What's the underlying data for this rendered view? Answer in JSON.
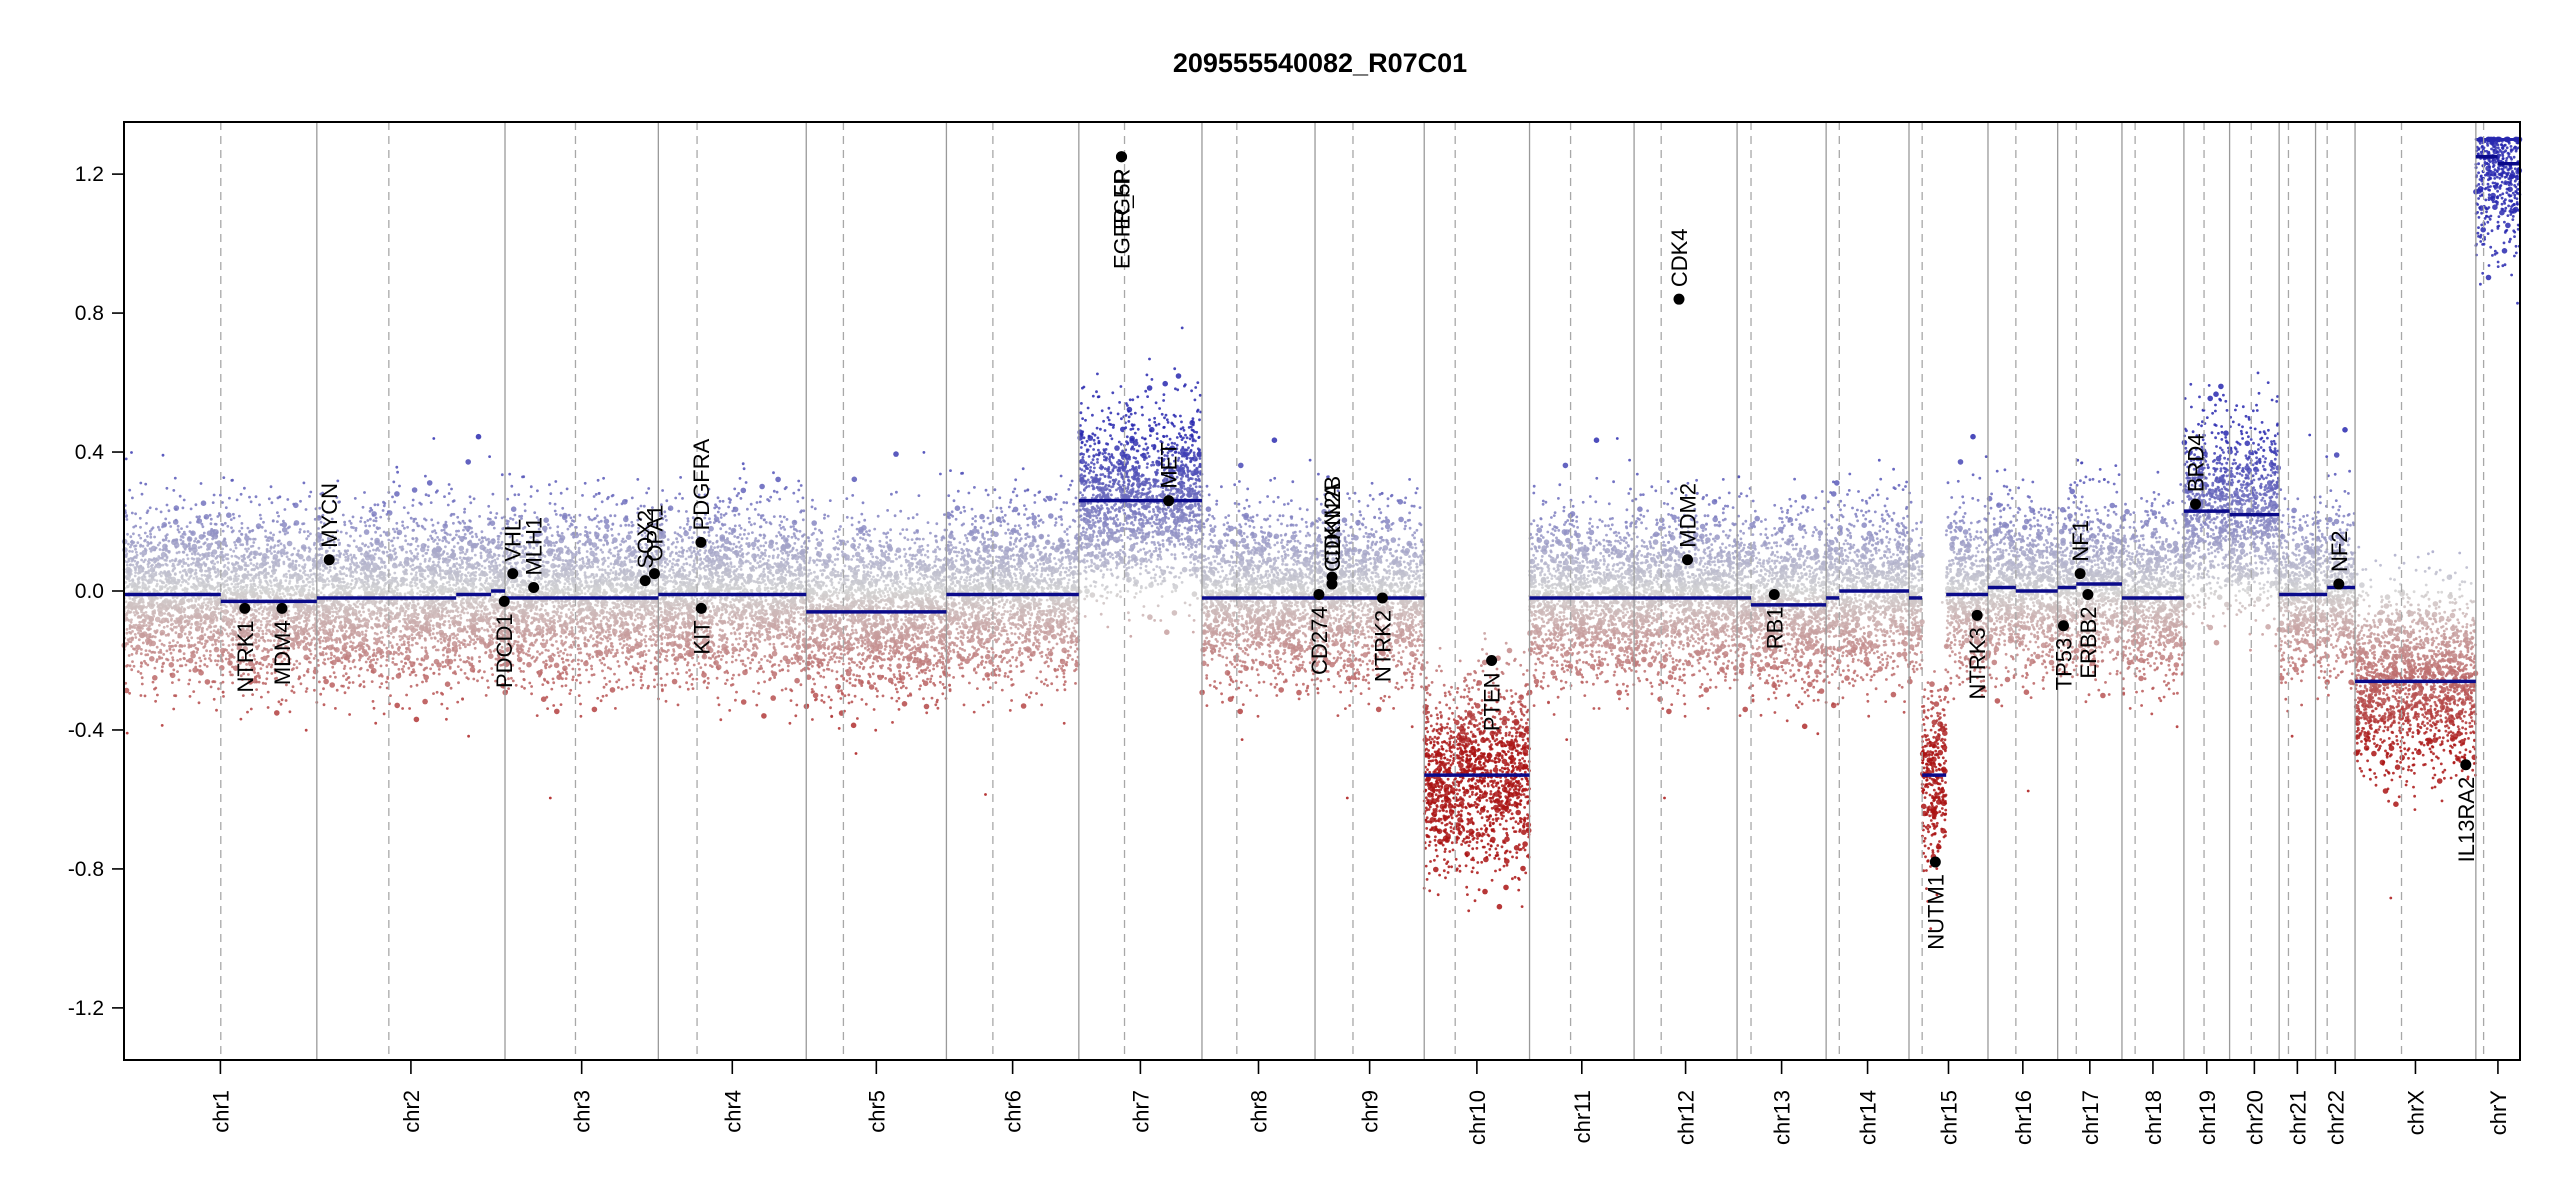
{
  "chart_data": {
    "type": "scatter",
    "title": "209555540082_R07C01",
    "xlabel": "",
    "ylabel": "",
    "ylim": [
      -1.35,
      1.35
    ],
    "yticks": [
      "1.2",
      "0.8",
      "0.4",
      "0.0",
      "-0.4",
      "-0.8",
      "-1.2"
    ],
    "yvalues": [
      1.2,
      0.8,
      0.4,
      0.0,
      -0.4,
      -0.8,
      -1.2
    ],
    "grid": false,
    "legend": "none",
    "colors": {
      "gain": "#2a2ab0",
      "loss": "#b01818",
      "neutral": "#c8c8c8",
      "segment": "#0a0a8a",
      "gene": "#000000"
    },
    "chromosomes": [
      {
        "name": "chr1",
        "length": 249,
        "centromere": 125,
        "segments": [
          {
            "start": 0,
            "end": 125,
            "value": -0.01
          },
          {
            "start": 125,
            "end": 249,
            "value": -0.03
          }
        ]
      },
      {
        "name": "chr2",
        "length": 243,
        "centromere": 93,
        "segments": [
          {
            "start": 0,
            "end": 180,
            "value": -0.02
          },
          {
            "start": 180,
            "end": 225,
            "value": -0.01
          },
          {
            "start": 225,
            "end": 243,
            "value": 0.0
          }
        ]
      },
      {
        "name": "chr3",
        "length": 198,
        "centromere": 91,
        "segments": [
          {
            "start": 0,
            "end": 198,
            "value": -0.02
          }
        ]
      },
      {
        "name": "chr4",
        "length": 191,
        "centromere": 50,
        "segments": [
          {
            "start": 0,
            "end": 191,
            "value": -0.01
          }
        ]
      },
      {
        "name": "chr5",
        "length": 181,
        "centromere": 48,
        "segments": [
          {
            "start": 0,
            "end": 181,
            "value": -0.06
          }
        ]
      },
      {
        "name": "chr6",
        "length": 171,
        "centromere": 60,
        "segments": [
          {
            "start": 0,
            "end": 171,
            "value": -0.01
          }
        ]
      },
      {
        "name": "chr7",
        "length": 159,
        "centromere": 59,
        "segments": [
          {
            "start": 0,
            "end": 159,
            "value": 0.26
          }
        ]
      },
      {
        "name": "chr8",
        "length": 146,
        "centromere": 45,
        "segments": [
          {
            "start": 0,
            "end": 146,
            "value": -0.02
          }
        ]
      },
      {
        "name": "chr9",
        "length": 141,
        "centromere": 49,
        "segments": [
          {
            "start": 0,
            "end": 141,
            "value": -0.02
          }
        ]
      },
      {
        "name": "chr10",
        "length": 136,
        "centromere": 40,
        "segments": [
          {
            "start": 0,
            "end": 136,
            "value": -0.53
          }
        ]
      },
      {
        "name": "chr11",
        "length": 135,
        "centromere": 53,
        "segments": [
          {
            "start": 0,
            "end": 135,
            "value": -0.02
          }
        ]
      },
      {
        "name": "chr12",
        "length": 133,
        "centromere": 35,
        "segments": [
          {
            "start": 0,
            "end": 133,
            "value": -0.02
          }
        ]
      },
      {
        "name": "chr13",
        "length": 115,
        "centromere": 18,
        "segments": [
          {
            "start": 0,
            "end": 18,
            "value": -0.02
          },
          {
            "start": 18,
            "end": 115,
            "value": -0.04
          }
        ]
      },
      {
        "name": "chr14",
        "length": 107,
        "centromere": 17,
        "segments": [
          {
            "start": 0,
            "end": 17,
            "value": -0.02
          },
          {
            "start": 17,
            "end": 107,
            "value": 0.0
          }
        ]
      },
      {
        "name": "chr15",
        "length": 102,
        "centromere": 17,
        "segments": [
          {
            "start": 0,
            "end": 17,
            "value": -0.02
          },
          {
            "start": 17,
            "end": 48,
            "value": -0.53
          },
          {
            "start": 48,
            "end": 102,
            "value": -0.01
          }
        ]
      },
      {
        "name": "chr16",
        "length": 90,
        "centromere": 36,
        "segments": [
          {
            "start": 0,
            "end": 36,
            "value": 0.01
          },
          {
            "start": 36,
            "end": 90,
            "value": 0.0
          }
        ]
      },
      {
        "name": "chr17",
        "length": 83,
        "centromere": 24,
        "segments": [
          {
            "start": 0,
            "end": 24,
            "value": 0.01
          },
          {
            "start": 24,
            "end": 83,
            "value": 0.02
          }
        ]
      },
      {
        "name": "chr18",
        "length": 80,
        "centromere": 17,
        "segments": [
          {
            "start": 0,
            "end": 80,
            "value": -0.02
          }
        ]
      },
      {
        "name": "chr19",
        "length": 59,
        "centromere": 26,
        "segments": [
          {
            "start": 0,
            "end": 59,
            "value": 0.23
          }
        ]
      },
      {
        "name": "chr20",
        "length": 64,
        "centromere": 28,
        "segments": [
          {
            "start": 0,
            "end": 64,
            "value": 0.22
          }
        ]
      },
      {
        "name": "chr21",
        "length": 47,
        "centromere": 12,
        "segments": [
          {
            "start": 0,
            "end": 47,
            "value": -0.01
          }
        ]
      },
      {
        "name": "chr22",
        "length": 51,
        "centromere": 15,
        "segments": [
          {
            "start": 0,
            "end": 15,
            "value": -0.01
          },
          {
            "start": 15,
            "end": 51,
            "value": 0.01
          }
        ]
      },
      {
        "name": "chrX",
        "length": 156,
        "centromere": 60,
        "segments": [
          {
            "start": 0,
            "end": 156,
            "value": -0.26
          }
        ]
      },
      {
        "name": "chrY",
        "length": 57,
        "centromere": 10,
        "segments": [
          {
            "start": 0,
            "end": 28,
            "value": 1.25
          },
          {
            "start": 28,
            "end": 57,
            "value": 1.23
          }
        ]
      }
    ],
    "genes": [
      {
        "name": "NTRK1",
        "chr": "chr1",
        "pos": 156,
        "value": -0.05,
        "label_side": "below"
      },
      {
        "name": "MDM4",
        "chr": "chr1",
        "pos": 204,
        "value": -0.05,
        "label_side": "below"
      },
      {
        "name": "MYCN",
        "chr": "chr2",
        "pos": 16,
        "value": 0.09,
        "label_side": "above"
      },
      {
        "name": "VHL",
        "chr": "chr3",
        "pos": 10,
        "value": 0.05,
        "label_side": "above"
      },
      {
        "name": "PDCD1",
        "chr": "chr2",
        "pos": 242,
        "value": -0.03,
        "label_side": "below"
      },
      {
        "name": "MLH1",
        "chr": "chr3",
        "pos": 37,
        "value": 0.01,
        "label_side": "above"
      },
      {
        "name": "SOX2",
        "chr": "chr3",
        "pos": 181,
        "value": 0.03,
        "label_side": "above"
      },
      {
        "name": "OPA1",
        "chr": "chr3",
        "pos": 193,
        "value": 0.05,
        "label_side": "above"
      },
      {
        "name": "PDGFRA",
        "chr": "chr4",
        "pos": 55,
        "value": 0.14,
        "label_side": "above"
      },
      {
        "name": "KIT",
        "chr": "chr4",
        "pos": 55.5,
        "value": -0.05,
        "label_side": "below"
      },
      {
        "name": "EGFR",
        "chr": "chr7",
        "pos": 55,
        "value": 1.25,
        "label_side": "below"
      },
      {
        "name": "EGFR_5P",
        "chr": "chr7",
        "pos": 55.2,
        "value": 1.25,
        "label_side": "below"
      },
      {
        "name": "MET",
        "chr": "chr7",
        "pos": 116,
        "value": 0.26,
        "label_side": "above"
      },
      {
        "name": "CD274",
        "chr": "chr9",
        "pos": 5,
        "value": -0.01,
        "label_side": "below"
      },
      {
        "name": "CDKN2A",
        "chr": "chr9",
        "pos": 21.9,
        "value": 0.02,
        "label_side": "above"
      },
      {
        "name": "CDKN2B",
        "chr": "chr9",
        "pos": 22,
        "value": 0.04,
        "label_side": "above"
      },
      {
        "name": "NTRK2",
        "chr": "chr9",
        "pos": 87,
        "value": -0.02,
        "label_side": "below"
      },
      {
        "name": "PTEN",
        "chr": "chr10",
        "pos": 87,
        "value": -0.2,
        "label_side": "below"
      },
      {
        "name": "CDK4",
        "chr": "chr12",
        "pos": 58,
        "value": 0.84,
        "label_side": "above"
      },
      {
        "name": "MDM2",
        "chr": "chr12",
        "pos": 69,
        "value": 0.09,
        "label_side": "above"
      },
      {
        "name": "RB1",
        "chr": "chr13",
        "pos": 48,
        "value": -0.01,
        "label_side": "below"
      },
      {
        "name": "NUTM1",
        "chr": "chr15",
        "pos": 34,
        "value": -0.78,
        "label_side": "below"
      },
      {
        "name": "NTRK3",
        "chr": "chr15",
        "pos": 88,
        "value": -0.07,
        "label_side": "below"
      },
      {
        "name": "TP53",
        "chr": "chr17",
        "pos": 7.5,
        "value": -0.1,
        "label_side": "below"
      },
      {
        "name": "NF1",
        "chr": "chr17",
        "pos": 29,
        "value": 0.05,
        "label_side": "above"
      },
      {
        "name": "ERBB2",
        "chr": "chr17",
        "pos": 39,
        "value": -0.01,
        "label_side": "below"
      },
      {
        "name": "BRD4",
        "chr": "chr19",
        "pos": 15,
        "value": 0.25,
        "label_side": "above"
      },
      {
        "name": "NF2",
        "chr": "chr22",
        "pos": 30,
        "value": 0.02,
        "label_side": "above"
      },
      {
        "name": "IL13RA2",
        "chr": "chrX",
        "pos": 143,
        "value": -0.5,
        "label_side": "below"
      }
    ]
  }
}
